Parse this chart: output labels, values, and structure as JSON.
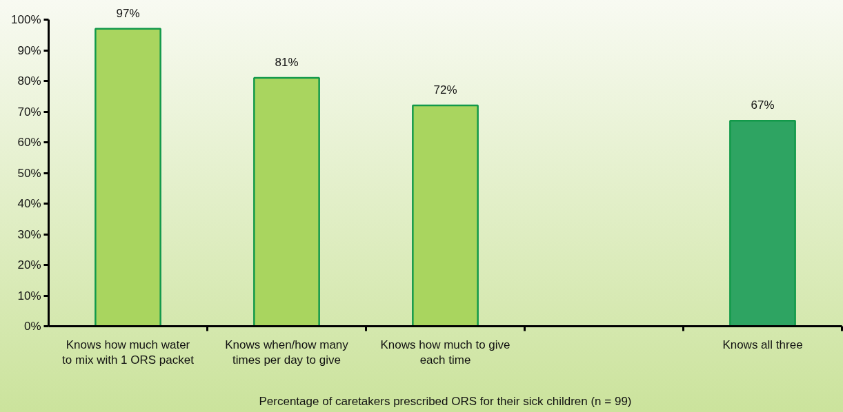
{
  "chart_data": {
    "type": "bar",
    "categories": [
      "Knows how much water\nto mix with 1 ORS packet",
      "Knows when/how many\ntimes per day to give",
      "Knows how much to give\neach time",
      null,
      "Knows all three"
    ],
    "values": [
      97,
      81,
      72,
      null,
      67
    ],
    "colors": [
      "#a9d55f",
      "#a9d55f",
      "#a9d55f",
      null,
      "#2ea462"
    ],
    "value_labels": [
      "97%",
      "81%",
      "72%",
      null,
      "67%"
    ],
    "xlabel": "Percentage of caretakers prescribed ORS for their sick children (n = 99)",
    "ylim": [
      0,
      100
    ],
    "yticks": [
      {
        "value": 0,
        "label": "0%"
      },
      {
        "value": 10,
        "label": "10%"
      },
      {
        "value": 20,
        "label": "20%"
      },
      {
        "value": 30,
        "label": "30%"
      },
      {
        "value": 40,
        "label": "40%"
      },
      {
        "value": 50,
        "label": "50%"
      },
      {
        "value": 60,
        "label": "60%"
      },
      {
        "value": 70,
        "label": "70%"
      },
      {
        "value": 80,
        "label": "80%"
      },
      {
        "value": 90,
        "label": "90%"
      },
      {
        "value": 100,
        "label": "100%"
      }
    ],
    "grid": false
  }
}
